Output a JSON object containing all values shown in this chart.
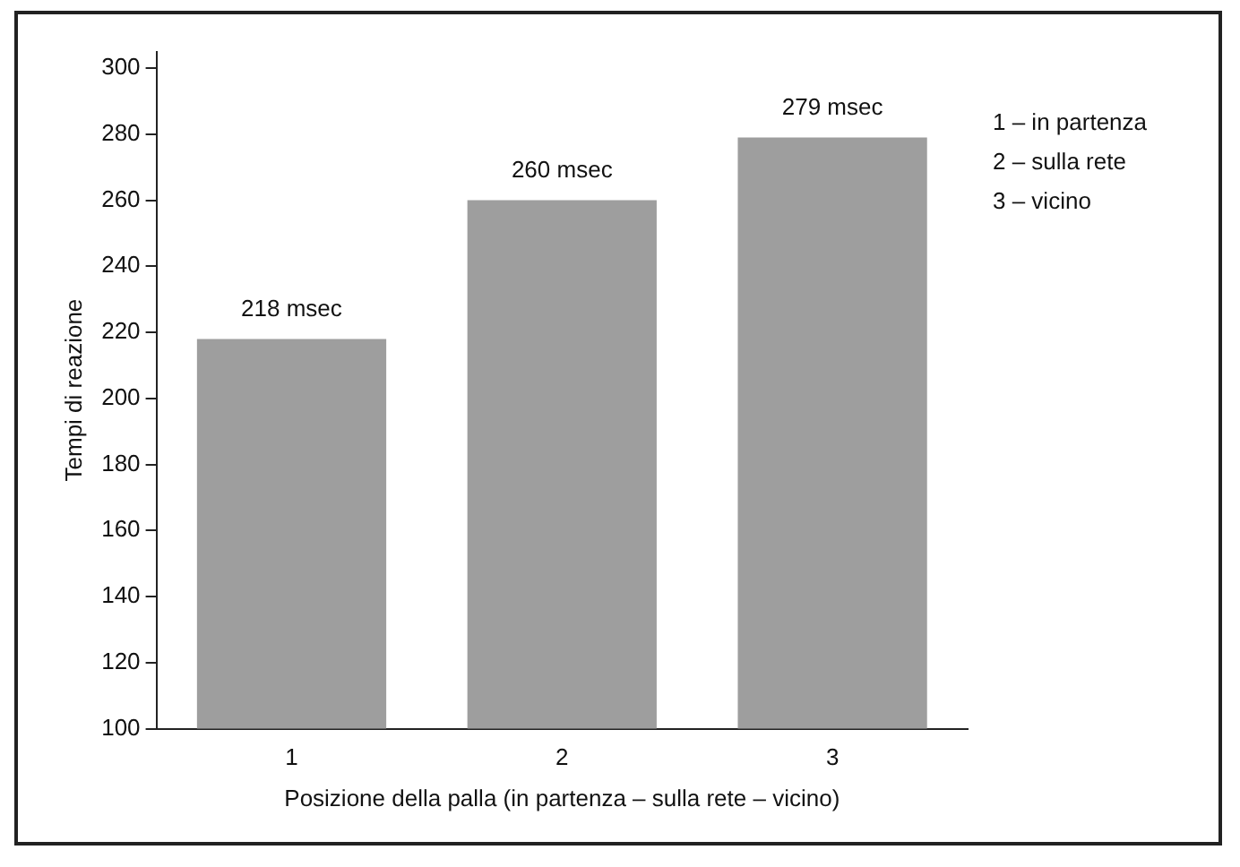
{
  "chart_data": {
    "type": "bar",
    "xlabel": "Posizione della palla (in partenza – sulla rete – vicino)",
    "ylabel": "Tempi di reazione",
    "categories": [
      "1",
      "2",
      "3"
    ],
    "values": [
      218,
      260,
      279
    ],
    "value_labels": [
      "218 msec",
      "260 msec",
      "279 msec"
    ],
    "color": "#9e9e9e",
    "ylim": [
      100,
      305
    ],
    "yticks": [
      100,
      120,
      140,
      160,
      180,
      200,
      220,
      240,
      260,
      280,
      300
    ],
    "grid": false,
    "legend": false,
    "annotations": [
      "1 – in partenza",
      "2 – sulla rete",
      "3 – vicino"
    ]
  }
}
